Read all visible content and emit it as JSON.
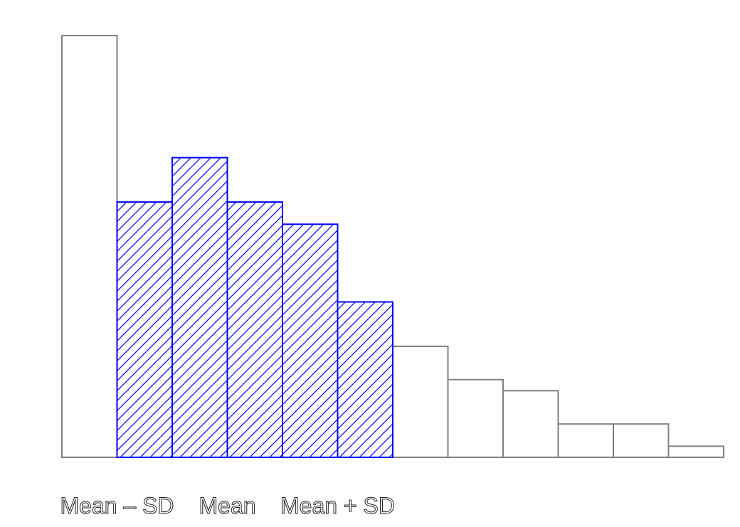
{
  "chart_data": {
    "type": "bar",
    "title": "",
    "xlabel": "",
    "ylabel": "",
    "bins": 12,
    "values": [
      38,
      23,
      27,
      23,
      21,
      14,
      10,
      7,
      6,
      3,
      3,
      1
    ],
    "highlighted_bins": [
      1,
      2,
      3,
      4,
      5
    ],
    "ylim": [
      0,
      38
    ],
    "grid": false,
    "legend": "none",
    "tick_labels": [
      {
        "label": "Mean – SD",
        "bin_edge": 1
      },
      {
        "label": "Mean",
        "bin_edge": 3
      },
      {
        "label": "Mean + SD",
        "bin_edge": 5
      }
    ],
    "colors": {
      "outline": "#808080",
      "highlight": "#0000ff",
      "text": "#222222"
    }
  }
}
